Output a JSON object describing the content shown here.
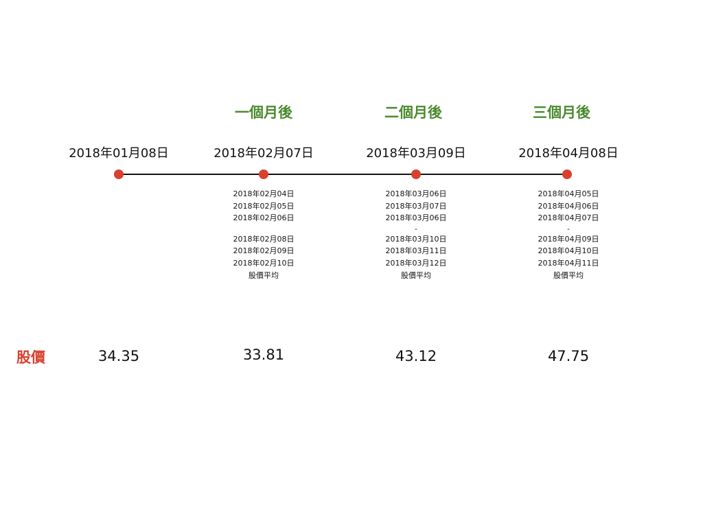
{
  "colors": {
    "period_label": "#4a8a2e",
    "dot": "#d9402e",
    "row_label": "#d9402e",
    "line": "#111111"
  },
  "periods": [
    "一個月後",
    "二個月後",
    "三個月後"
  ],
  "dates": [
    "2018年01月08日",
    "2018年02月07日",
    "2018年03月09日",
    "2018年04月08日"
  ],
  "avg_blocks": [
    {
      "before": [
        "2018年02月04日",
        "2018年02月05日",
        "2018年02月06日"
      ],
      "separator": "",
      "after": [
        "2018年02月08日",
        "2018年02月09日",
        "2018年02月10日"
      ],
      "caption": "股價平均"
    },
    {
      "before": [
        "2018年03月06日",
        "2018年03月07日",
        "2018年03月06日"
      ],
      "separator": "-",
      "after": [
        "2018年03月10日",
        "2018年03月11日",
        "2018年03月12日"
      ],
      "caption": "股價平均"
    },
    {
      "before": [
        "2018年04月05日",
        "2018年04月06日",
        "2018年04月07日"
      ],
      "separator": "-",
      "after": [
        "2018年04月09日",
        "2018年04月10日",
        "2018年04月11日"
      ],
      "caption": "股價平均"
    }
  ],
  "row_label": "股價",
  "prices": [
    "34.35",
    "33.81",
    "43.12",
    "47.75"
  ]
}
